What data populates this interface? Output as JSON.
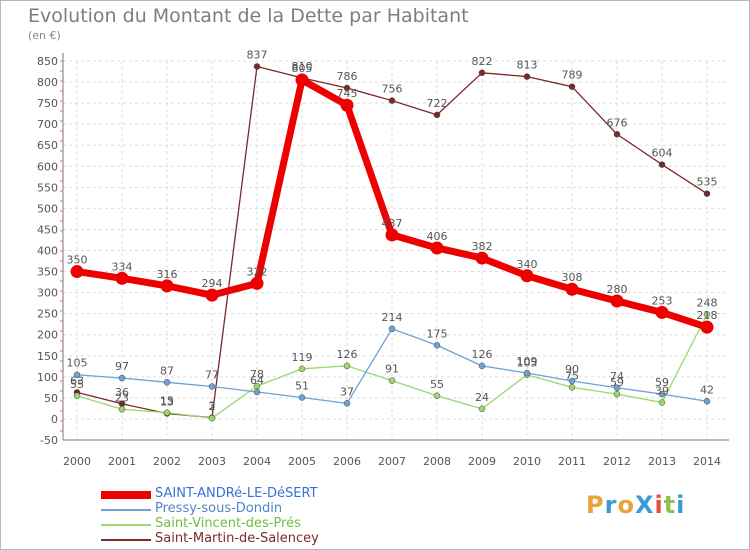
{
  "title": "Evolution du Montant de la Dette par Habitant",
  "subtitle": "(en €)",
  "logo": {
    "text": "ProXiti",
    "colors": [
      "#e8a33b",
      "#3b9bd6",
      "#e8a33b",
      "#3b9bd6",
      "#e84f3d",
      "#8bc34a",
      "#3b9bd6"
    ]
  },
  "chart_data": {
    "type": "line",
    "x": [
      "2000",
      "2001",
      "2002",
      "2003",
      "2004",
      "2005",
      "2006",
      "2007",
      "2008",
      "2009",
      "2010",
      "2011",
      "2012",
      "2013",
      "2014"
    ],
    "ylim": [
      -50,
      850
    ],
    "yticks": [
      -50,
      0,
      50,
      100,
      150,
      200,
      250,
      300,
      350,
      400,
      450,
      500,
      550,
      600,
      650,
      700,
      750,
      800,
      850
    ],
    "grid": true,
    "legend_position": "bottom-left",
    "series": [
      {
        "name": "SAINT-ANDRé-LE-DéSERT",
        "color": "#ee0000",
        "labelColor": "#3a6fd8",
        "values": [
          350,
          334,
          316,
          294,
          322,
          805,
          745,
          437,
          406,
          382,
          340,
          308,
          280,
          253,
          218
        ]
      },
      {
        "name": "Pressy-sous-Dondin",
        "color": "#6fa1d6",
        "labelColor": "#4f86c6",
        "values": [
          105,
          97,
          87,
          77,
          64,
          51,
          37,
          214,
          175,
          126,
          109,
          90,
          74,
          59,
          42
        ]
      },
      {
        "name": "Saint-Vincent-des-Prés",
        "color": "#9ad86a",
        "labelColor": "#6fbf3c",
        "values": [
          55,
          23,
          15,
          2,
          78,
          119,
          126,
          91,
          55,
          24,
          105,
          75,
          59,
          39,
          248
        ]
      },
      {
        "name": "Saint-Martin-de-Salencey",
        "color": "#7a2a2a",
        "labelColor": "#7a2a2a",
        "values": [
          63,
          36,
          13,
          3,
          837,
          810,
          786,
          756,
          722,
          822,
          813,
          789,
          676,
          604,
          535
        ]
      }
    ]
  }
}
